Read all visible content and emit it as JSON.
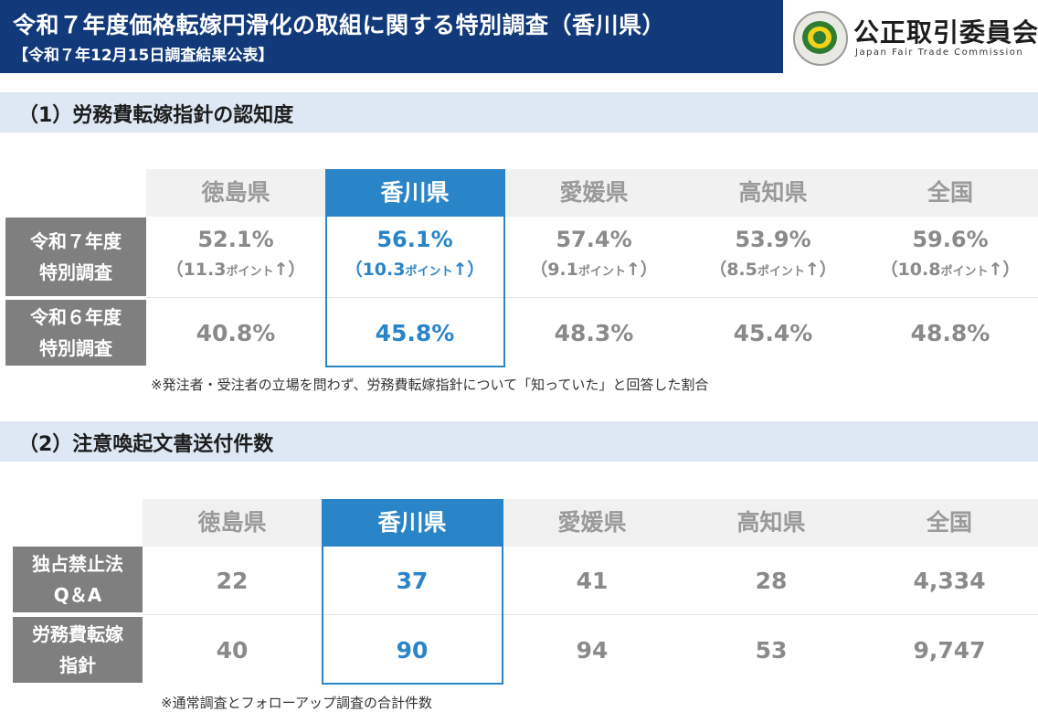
{
  "banner": {
    "title": "令和７年度価格転嫁円滑化の取組に関する特別調査（香川県）",
    "subtitle": "【令和７年12月15日調査結果公表】"
  },
  "logo": {
    "name_jp": "公正取引委員会",
    "name_en": "Japan Fair Trade Commission",
    "icon": "jftc-seal-icon"
  },
  "section1": {
    "heading": "（1）労務費転嫁指針の認知度",
    "columns": [
      "徳島県",
      "香川県",
      "愛媛県",
      "高知県",
      "全国"
    ],
    "rows": [
      {
        "label_line1": "令和７年度",
        "label_line2": "特別調査",
        "values": [
          "52.1%",
          "56.1%",
          "57.4%",
          "53.9%",
          "59.6%"
        ],
        "changes": [
          {
            "open": "（11.3",
            "unit": "ポイント",
            "close": "↑）"
          },
          {
            "open": "（10.3",
            "unit": "ポイント",
            "close": "↑）"
          },
          {
            "open": "（9.1",
            "unit": "ポイント",
            "close": "↑）"
          },
          {
            "open": "（8.5",
            "unit": "ポイント",
            "close": "↑）"
          },
          {
            "open": "（10.8",
            "unit": "ポイント",
            "close": "↑）"
          }
        ]
      },
      {
        "label_line1": "令和６年度",
        "label_line2": "特別調査",
        "values": [
          "40.8%",
          "45.8%",
          "48.3%",
          "45.4%",
          "48.8%"
        ]
      }
    ],
    "note": "※発注者・受注者の立場を問わず、労務費転嫁指針について「知っていた」と回答した割合"
  },
  "section2": {
    "heading": "（2）注意喚起文書送付件数",
    "columns": [
      "徳島県",
      "香川県",
      "愛媛県",
      "高知県",
      "全国"
    ],
    "rows": [
      {
        "label_line1": "独占禁止法",
        "label_line2": "Q＆A",
        "values": [
          "22",
          "37",
          "41",
          "28",
          "4,334"
        ]
      },
      {
        "label_line1": "労務費転嫁",
        "label_line2": "指針",
        "values": [
          "40",
          "90",
          "94",
          "53",
          "9,747"
        ]
      }
    ],
    "note": "※通常調査とフォローアップ調査の合計件数"
  },
  "colors": {
    "banner": "#123a7a",
    "section_band": "#dde8f4",
    "highlight": "#2a85c8",
    "row_label": "#7f7f7f",
    "value_text": "#8a8a8a"
  }
}
